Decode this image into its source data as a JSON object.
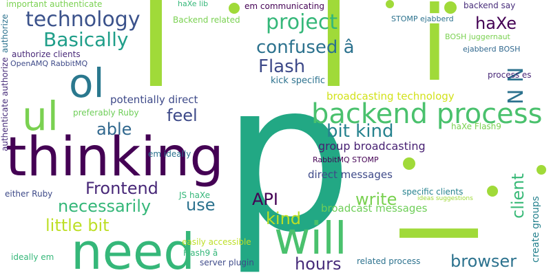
{
  "words": [
    {
      "id": "w-p",
      "text": "p",
      "color": "#22a884"
    },
    {
      "id": "w-l1",
      "text": "l",
      "color": "#a0da39"
    },
    {
      "id": "w-l2",
      "text": "l",
      "color": "#a0da39"
    },
    {
      "id": "w-i",
      "text": "i",
      "color": "#a0da39"
    },
    {
      "id": "w-ir",
      "text": "l",
      "color": "#a0da39"
    },
    {
      "id": "w-thinking",
      "text": "thinking",
      "color": "#440154"
    },
    {
      "id": "w-need",
      "text": "need",
      "color": "#35b779"
    },
    {
      "id": "w-will",
      "text": "will",
      "color": "#4ac16d"
    },
    {
      "id": "w-ol",
      "text": "ol",
      "color": "#2a788e"
    },
    {
      "id": "w-ul",
      "text": "ul",
      "color": "#7ad151"
    },
    {
      "id": "w-backend-process",
      "text": "backend process",
      "color": "#4ac16d"
    },
    {
      "id": "w-technology",
      "text": "technology",
      "color": "#3b528b"
    },
    {
      "id": "w-basically",
      "text": "Basically",
      "color": "#1f9e89"
    },
    {
      "id": "w-project",
      "text": "project",
      "color": "#35b779"
    },
    {
      "id": "w-haxe",
      "text": "haXe",
      "color": "#440154"
    },
    {
      "id": "w-confused",
      "text": "confused â",
      "color": "#2c728e"
    },
    {
      "id": "w-flash",
      "text": "Flash",
      "color": "#3e4a89"
    },
    {
      "id": "w-nn",
      "text": "N N",
      "color": "#2c728e"
    },
    {
      "id": "w-feel",
      "text": "feel",
      "color": "#3e4a89"
    },
    {
      "id": "w-able",
      "text": "able",
      "color": "#31688e"
    },
    {
      "id": "w-bit-kind",
      "text": "bit kind",
      "color": "#26828e"
    },
    {
      "id": "w-frontend",
      "text": "Frontend",
      "color": "#482878"
    },
    {
      "id": "w-necessarily",
      "text": "necessarily",
      "color": "#35b779"
    },
    {
      "id": "w-use",
      "text": "use",
      "color": "#2c728e"
    },
    {
      "id": "w-api",
      "text": "API",
      "color": "#440154"
    },
    {
      "id": "w-write",
      "text": "write",
      "color": "#7ad151"
    },
    {
      "id": "w-kind",
      "text": "kind",
      "color": "#bddf26"
    },
    {
      "id": "w-little-bit",
      "text": "little bit",
      "color": "#bddf26"
    },
    {
      "id": "w-hours",
      "text": "hours",
      "color": "#472c7a"
    },
    {
      "id": "w-browser",
      "text": "browser",
      "color": "#2c728e"
    },
    {
      "id": "w-client",
      "text": "client",
      "color": "#38b977"
    },
    {
      "id": "w-group-broadcasting",
      "text": "group broadcasting",
      "color": "#482173"
    },
    {
      "id": "w-broadcasting-technology",
      "text": "broadcasting technology",
      "color": "#d2e21b"
    },
    {
      "id": "w-potentially-direct",
      "text": "potentially direct",
      "color": "#3e4a89"
    },
    {
      "id": "w-direct-messages",
      "text": "direct messages",
      "color": "#3e4a89"
    },
    {
      "id": "w-broadcast-messages",
      "text": "broadcast messages",
      "color": "#6ece58"
    },
    {
      "id": "w-kick-specific",
      "text": "kick specific",
      "color": "#2c728e"
    },
    {
      "id": "w-preferably-ruby",
      "text": "preferably Ruby",
      "color": "#6ece58"
    },
    {
      "id": "w-em-ideally",
      "text": "em ideally",
      "color": "#2c728e"
    },
    {
      "id": "w-either-ruby",
      "text": "either Ruby",
      "color": "#3e4a89"
    },
    {
      "id": "w-js-haxe",
      "text": "JS haXe",
      "color": "#35b779"
    },
    {
      "id": "w-easily-accessible",
      "text": "easily accessible",
      "color": "#bddf26"
    },
    {
      "id": "w-flash9-a",
      "text": "Flash9 â",
      "color": "#35b779"
    },
    {
      "id": "w-server-plugin",
      "text": "server plugin",
      "color": "#3e4a89"
    },
    {
      "id": "w-ideally-em",
      "text": "ideally em",
      "color": "#35b779"
    },
    {
      "id": "w-related-process",
      "text": "related process",
      "color": "#2c728e"
    },
    {
      "id": "w-rabbitmq-stomp",
      "text": "RabbitMQ STOMP",
      "color": "#440154"
    },
    {
      "id": "w-haxe-flash9",
      "text": "haXe Flash9",
      "color": "#7ad151"
    },
    {
      "id": "w-specific-clients",
      "text": "specific clients",
      "color": "#26828e"
    },
    {
      "id": "w-ideas-suggestions",
      "text": "ideas suggestions",
      "color": "#a0da39"
    },
    {
      "id": "w-haxe-lib",
      "text": "haXe lib",
      "color": "#35b779"
    },
    {
      "id": "w-em-communicating",
      "text": "em communicating",
      "color": "#440154"
    },
    {
      "id": "w-backend-say",
      "text": "backend say",
      "color": "#472c7a"
    },
    {
      "id": "w-backend-related",
      "text": "Backend related",
      "color": "#7ad151"
    },
    {
      "id": "w-stomp-ejabberd",
      "text": "STOMP ejabberd",
      "color": "#2c728e"
    },
    {
      "id": "w-bosh-juggernaut",
      "text": "BOSH juggernaut",
      "color": "#7ad151"
    },
    {
      "id": "w-ejabberd-bosh",
      "text": "ejabberd BOSH",
      "color": "#31688e"
    },
    {
      "id": "w-process-es",
      "text": "process es",
      "color": "#482878"
    },
    {
      "id": "w-important-authenticate",
      "text": "important authenticate",
      "color": "#7ad151"
    },
    {
      "id": "w-authorize-clients",
      "text": "authorize clients",
      "color": "#482878"
    },
    {
      "id": "w-openamq-rabbitmq",
      "text": "OpenAMQ RabbitMQ",
      "color": "#3e4a89"
    },
    {
      "id": "w-authenticate-authorize",
      "text": "authenticate authorize",
      "color": "#472c7a"
    },
    {
      "id": "w-authorize",
      "text": "authorize",
      "color": "#2c728e"
    },
    {
      "id": "w-create-groups",
      "text": "create groups",
      "color": "#26828e"
    },
    {
      "id": "w-dot1",
      "text": "",
      "color": "#a0da39"
    },
    {
      "id": "w-dot2",
      "text": "",
      "color": "#a0da39"
    },
    {
      "id": "w-dot3",
      "text": "",
      "color": "#a0da39"
    },
    {
      "id": "w-dot4",
      "text": "",
      "color": "#a0da39"
    },
    {
      "id": "w-dot5",
      "text": "",
      "color": "#a0da39"
    },
    {
      "id": "w-dot6",
      "text": "",
      "color": "#a0da39"
    }
  ]
}
